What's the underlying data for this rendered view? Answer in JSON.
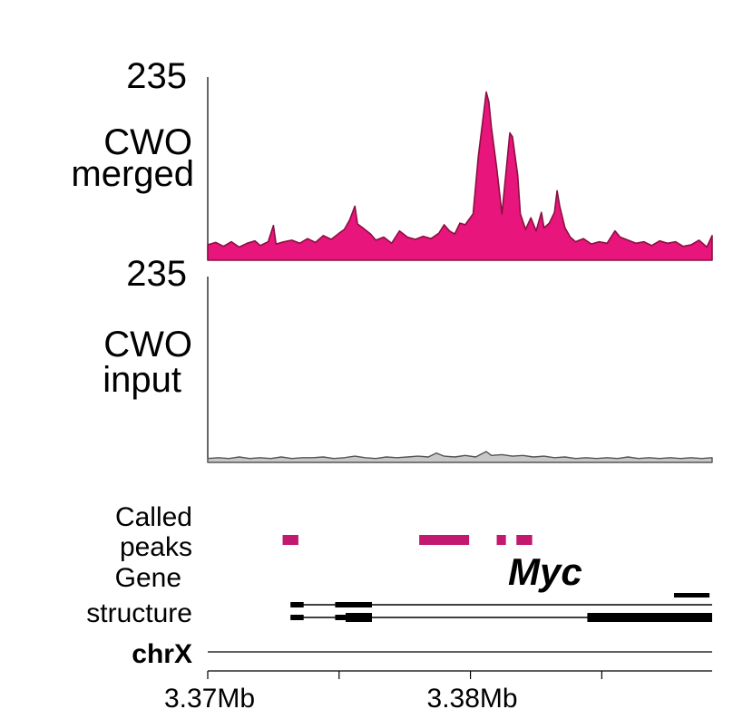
{
  "chart_data": {
    "type": "area",
    "x_axis": {
      "unit": "Mb",
      "range": [
        3.37,
        3.3892
      ],
      "ticks": [
        3.37,
        3.375,
        3.38,
        3.385,
        3.39
      ],
      "tick_labels": [
        {
          "value": 3.37,
          "label": "3.37Mb"
        },
        {
          "value": 3.38,
          "label": "3.38Mb"
        }
      ],
      "chromosome_label": "chrX"
    },
    "tracks": [
      {
        "label_lines": [
          "CWO",
          "merged"
        ],
        "scale_max_label": "235",
        "ylim": [
          0,
          235
        ],
        "color": "#e8157c",
        "outline": "#8a1040",
        "points": [
          [
            3.37,
            20
          ],
          [
            3.3703,
            23
          ],
          [
            3.3706,
            18
          ],
          [
            3.3709,
            24
          ],
          [
            3.3712,
            17
          ],
          [
            3.3715,
            22
          ],
          [
            3.3718,
            25
          ],
          [
            3.372,
            19
          ],
          [
            3.3723,
            24
          ],
          [
            3.3725,
            45
          ],
          [
            3.3726,
            21
          ],
          [
            3.3729,
            24
          ],
          [
            3.3732,
            26
          ],
          [
            3.3735,
            22
          ],
          [
            3.3738,
            28
          ],
          [
            3.3741,
            23
          ],
          [
            3.3744,
            32
          ],
          [
            3.3747,
            27
          ],
          [
            3.375,
            35
          ],
          [
            3.3752,
            40
          ],
          [
            3.3754,
            52
          ],
          [
            3.3756,
            70
          ],
          [
            3.3757,
            47
          ],
          [
            3.3759,
            42
          ],
          [
            3.3762,
            34
          ],
          [
            3.3764,
            26
          ],
          [
            3.3767,
            30
          ],
          [
            3.377,
            22
          ],
          [
            3.3773,
            38
          ],
          [
            3.3776,
            30
          ],
          [
            3.3779,
            27
          ],
          [
            3.3782,
            31
          ],
          [
            3.3785,
            28
          ],
          [
            3.3788,
            35
          ],
          [
            3.379,
            46
          ],
          [
            3.3792,
            38
          ],
          [
            3.3794,
            34
          ],
          [
            3.3796,
            48
          ],
          [
            3.3798,
            46
          ],
          [
            3.3801,
            60
          ],
          [
            3.3803,
            135
          ],
          [
            3.3805,
            190
          ],
          [
            3.3806,
            218
          ],
          [
            3.3807,
            205
          ],
          [
            3.3808,
            172
          ],
          [
            3.381,
            120
          ],
          [
            3.3812,
            60
          ],
          [
            3.3814,
            130
          ],
          [
            3.3815,
            165
          ],
          [
            3.3816,
            160
          ],
          [
            3.3818,
            110
          ],
          [
            3.3819,
            60
          ],
          [
            3.3821,
            40
          ],
          [
            3.3823,
            55
          ],
          [
            3.3825,
            38
          ],
          [
            3.3827,
            62
          ],
          [
            3.3828,
            42
          ],
          [
            3.383,
            48
          ],
          [
            3.3832,
            62
          ],
          [
            3.3833,
            90
          ],
          [
            3.3834,
            70
          ],
          [
            3.3836,
            42
          ],
          [
            3.3838,
            30
          ],
          [
            3.384,
            24
          ],
          [
            3.3843,
            28
          ],
          [
            3.3846,
            21
          ],
          [
            3.3849,
            24
          ],
          [
            3.3852,
            22
          ],
          [
            3.3855,
            38
          ],
          [
            3.3857,
            30
          ],
          [
            3.386,
            26
          ],
          [
            3.3863,
            22
          ],
          [
            3.3866,
            24
          ],
          [
            3.3869,
            19
          ],
          [
            3.3872,
            25
          ],
          [
            3.3875,
            22
          ],
          [
            3.3878,
            24
          ],
          [
            3.3881,
            18
          ],
          [
            3.3884,
            20
          ],
          [
            3.3887,
            26
          ],
          [
            3.389,
            17
          ],
          [
            3.3892,
            32
          ]
        ]
      },
      {
        "label_lines": [
          "CWO",
          "input"
        ],
        "scale_max_label": "235",
        "ylim": [
          0,
          235
        ],
        "color": "#c8c8c8",
        "outline": "#555555",
        "points": [
          [
            3.37,
            5
          ],
          [
            3.3704,
            6
          ],
          [
            3.3708,
            5
          ],
          [
            3.3712,
            7
          ],
          [
            3.3716,
            5
          ],
          [
            3.372,
            6
          ],
          [
            3.3724,
            5
          ],
          [
            3.3728,
            7
          ],
          [
            3.3732,
            5
          ],
          [
            3.3736,
            6
          ],
          [
            3.374,
            6
          ],
          [
            3.3744,
            7
          ],
          [
            3.3748,
            5
          ],
          [
            3.3752,
            6
          ],
          [
            3.3756,
            8
          ],
          [
            3.376,
            6
          ],
          [
            3.3764,
            5
          ],
          [
            3.3768,
            7
          ],
          [
            3.3772,
            6
          ],
          [
            3.3776,
            7
          ],
          [
            3.378,
            8
          ],
          [
            3.3784,
            7
          ],
          [
            3.3787,
            12
          ],
          [
            3.379,
            8
          ],
          [
            3.3794,
            7
          ],
          [
            3.3798,
            9
          ],
          [
            3.3802,
            7
          ],
          [
            3.3806,
            14
          ],
          [
            3.3808,
            9
          ],
          [
            3.3812,
            10
          ],
          [
            3.3816,
            8
          ],
          [
            3.382,
            9
          ],
          [
            3.3824,
            7
          ],
          [
            3.3828,
            8
          ],
          [
            3.3832,
            6
          ],
          [
            3.3836,
            7
          ],
          [
            3.384,
            5
          ],
          [
            3.3844,
            6
          ],
          [
            3.3848,
            5
          ],
          [
            3.3852,
            6
          ],
          [
            3.3856,
            5
          ],
          [
            3.386,
            7
          ],
          [
            3.3864,
            5
          ],
          [
            3.3868,
            6
          ],
          [
            3.3872,
            5
          ],
          [
            3.3876,
            6
          ],
          [
            3.388,
            5
          ],
          [
            3.3884,
            6
          ],
          [
            3.3888,
            5
          ],
          [
            3.3892,
            6
          ]
        ]
      }
    ],
    "called_peaks": {
      "label_lines": [
        "Called",
        "peaks"
      ],
      "color": "#c2186f",
      "intervals": [
        [
          3.37285,
          3.37345
        ],
        [
          3.37805,
          3.37995
        ],
        [
          3.381,
          3.38135
        ],
        [
          3.38175,
          3.38235
        ]
      ]
    },
    "gene_structure": {
      "label_lines": [
        "Gene",
        "structure"
      ],
      "gene_name": "Myc",
      "color": "#000000",
      "transcripts": [
        {
          "start": 3.37315,
          "end": 3.3892,
          "exons": [
            [
              3.37315,
              3.37365
            ],
            [
              3.37485,
              3.37625
            ]
          ]
        },
        {
          "start": 3.37315,
          "end": 3.3892,
          "exons": [
            [
              3.37315,
              3.37365
            ],
            [
              3.37485,
              3.37625
            ],
            [
              3.38445,
              3.3854
            ],
            [
              3.3854,
              3.3892
            ]
          ],
          "coding": [
            [
              3.37525,
              3.37625
            ],
            [
              3.38445,
              3.3892
            ]
          ]
        }
      ],
      "extra_feature": [
        3.38775,
        3.3891
      ]
    }
  }
}
